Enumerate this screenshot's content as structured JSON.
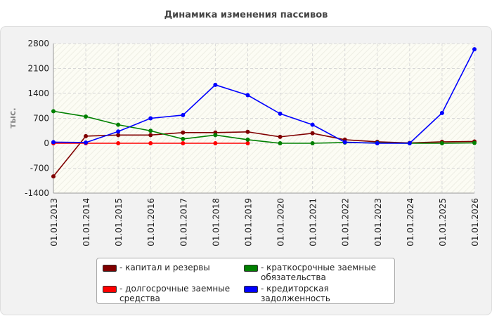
{
  "chart_data": {
    "type": "line",
    "title": "Динамика изменения пассивов",
    "y_label": "тыс.",
    "categories": [
      "01.01.2013",
      "01.01.2014",
      "01.01.2015",
      "01.01.2016",
      "01.01.2017",
      "01.01.2018",
      "01.01.2019",
      "01.01.2020",
      "01.01.2021",
      "01.01.2022",
      "01.01.2023",
      "01.01.2024",
      "01.01.2025",
      "01.01.2026"
    ],
    "series": [
      {
        "name": "- капитал и резервы",
        "color": "#800000",
        "values": [
          -930,
          200,
          230,
          230,
          300,
          300,
          320,
          180,
          280,
          100,
          40,
          10,
          40,
          50
        ]
      },
      {
        "name": "- долгосрочные заемные средства",
        "color": "#ff0000",
        "values": [
          0,
          0,
          0,
          0,
          0,
          0,
          0,
          null,
          null,
          null,
          null,
          null,
          null,
          null
        ]
      },
      {
        "name": "- краткосрочные заемные обязательства",
        "color": "#008000",
        "values": [
          900,
          750,
          520,
          350,
          120,
          230,
          100,
          0,
          0,
          20,
          10,
          0,
          0,
          10
        ]
      },
      {
        "name": "- кредиторская задолженность",
        "color": "#0000ff",
        "values": [
          30,
          20,
          330,
          700,
          790,
          1640,
          1350,
          830,
          520,
          30,
          0,
          0,
          850,
          2640
        ]
      }
    ],
    "ylim": [
      -1400,
      2800
    ],
    "yticks": [
      -1400,
      -700,
      0,
      700,
      1400,
      2100,
      2800
    ],
    "grid": true
  }
}
